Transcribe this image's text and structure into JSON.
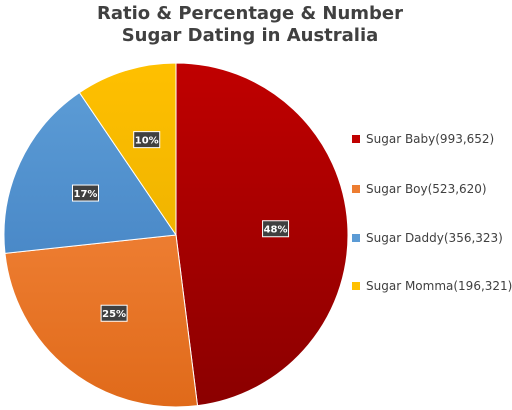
{
  "chart_data": {
    "type": "pie",
    "title_lines": [
      "Ratio & Percentage & Number",
      "Sugar Dating in Australia"
    ],
    "slices": [
      {
        "label": "Sugar Baby(993,652)",
        "value": 993652,
        "percent_label": "48%",
        "color": "#c00000",
        "color_dark": "#8b0000"
      },
      {
        "label": "Sugar Boy(523,620)",
        "value": 523620,
        "percent_label": "25%",
        "color": "#ed7d31",
        "color_dark": "#e06a1a"
      },
      {
        "label": "Sugar Daddy(356,323)",
        "value": 356323,
        "percent_label": "17%",
        "color": "#5b9bd5",
        "color_dark": "#4a89c8"
      },
      {
        "label": "Sugar Momma(196,321)",
        "value": 196321,
        "percent_label": "10%",
        "color": "#ffc000",
        "color_dark": "#f0b400"
      }
    ],
    "legend_position": "right"
  }
}
